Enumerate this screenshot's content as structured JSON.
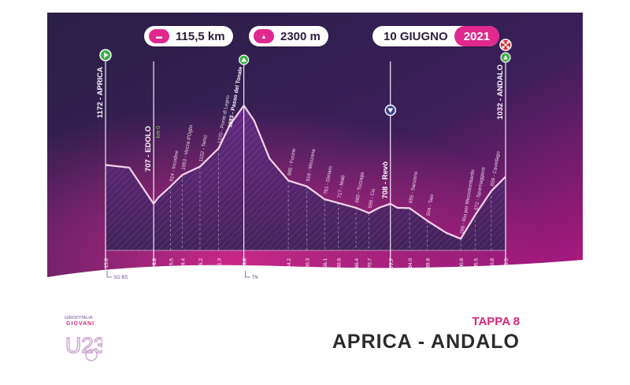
{
  "header": {
    "distance": "115,5 km",
    "distance_icon": "odometer-icon",
    "elevation_gain": "2300 m",
    "elevation_icon": "mountain-icon",
    "date": "10 GIUGNO",
    "year": "2021"
  },
  "footer": {
    "stage_label": "TAPPA 8",
    "stage_title": "APRICA - ANDALO",
    "logo_text_top": "GIROD'ITALIA",
    "logo_text_mid": "GIOVANI",
    "logo_text_main": "U23"
  },
  "colors": {
    "background_dark": "#221a3f",
    "background_accent": "#c01a84",
    "accent": "#e0288f",
    "profile_line": "#f5d5ea",
    "water_sign": "#ffffff"
  },
  "chart_data": {
    "type": "area",
    "title": "",
    "xlabel": "",
    "ylabel": "",
    "x_unit": "km",
    "y_unit": "m",
    "xlim": [
      -15.8,
      115.5
    ],
    "ylim": [
      0,
      1883
    ],
    "profile": [
      {
        "x": -15.8,
        "y": 1172
      },
      {
        "x": -8,
        "y": 1140
      },
      {
        "x": 0.0,
        "y": 707
      },
      {
        "x": 1.5,
        "y": 780
      },
      {
        "x": 5.5,
        "y": 914
      },
      {
        "x": 9.4,
        "y": 1053
      },
      {
        "x": 15.2,
        "y": 1152
      },
      {
        "x": 21.3,
        "y": 1370
      },
      {
        "x": 25,
        "y": 1650
      },
      {
        "x": 29.6,
        "y": 1883
      },
      {
        "x": 33,
        "y": 1700
      },
      {
        "x": 38,
        "y": 1250
      },
      {
        "x": 44.2,
        "y": 985
      },
      {
        "x": 50.3,
        "y": 916
      },
      {
        "x": 56.1,
        "y": 761
      },
      {
        "x": 60.6,
        "y": 717
      },
      {
        "x": 66.4,
        "y": 660
      },
      {
        "x": 70.7,
        "y": 596
      },
      {
        "x": 74,
        "y": 660
      },
      {
        "x": 77.7,
        "y": 708
      },
      {
        "x": 80,
        "y": 660
      },
      {
        "x": 84.0,
        "y": 655
      },
      {
        "x": 89.8,
        "y": 504
      },
      {
        "x": 96,
        "y": 360
      },
      {
        "x": 100.8,
        "y": 288
      },
      {
        "x": 105.5,
        "y": 572
      },
      {
        "x": 110.8,
        "y": 859
      },
      {
        "x": 115.5,
        "y": 1032
      }
    ],
    "start": {
      "x": -15.8,
      "label": "1172 - APRICA",
      "icon": "start-flag-icon"
    },
    "finish": {
      "x": 115.5,
      "label": "1032 - ANDALO",
      "icon": "finish-flag-icon"
    },
    "km0": {
      "x": 0.0,
      "label": "707 - EDOLO",
      "marker": "km 0"
    },
    "gpm": {
      "x": 29.6,
      "label": "1883 - Passo del Tonale",
      "icon": "gpm-mountain-icon"
    },
    "feed": {
      "x": 77.7,
      "label": "708 - Revò",
      "icon": "water-drop-icon"
    },
    "waypoints": [
      {
        "x": 5.5,
        "label": "914 - Incudine"
      },
      {
        "x": 9.4,
        "label": "1053 - Vezza d'Oglio"
      },
      {
        "x": 15.2,
        "label": "1152 - Temù"
      },
      {
        "x": 21.3,
        "label": "1370 - Ponte di Legno"
      },
      {
        "x": 44.2,
        "label": "985 - Fucine"
      },
      {
        "x": 50.3,
        "label": "916 - Mezzana"
      },
      {
        "x": 56.1,
        "label": "761 - Dimaro"
      },
      {
        "x": 60.6,
        "label": "717 - Malè"
      },
      {
        "x": 66.4,
        "label": "660 - Tozzaga"
      },
      {
        "x": 70.7,
        "label": "596 - Cis"
      },
      {
        "x": 84.0,
        "label": "655 - Sanzeno"
      },
      {
        "x": 89.8,
        "label": "504 - Taio"
      },
      {
        "x": 100.8,
        "label": "288 - Rio per Mezzolombardo"
      },
      {
        "x": 105.5,
        "label": "572 - Spormaggiore"
      },
      {
        "x": 110.8,
        "label": "859 - Cavedago"
      }
    ],
    "ticks": [
      {
        "x": -15.8,
        "label": "15.8"
      },
      {
        "x": 0.0,
        "label": "0.0"
      },
      {
        "x": 5.5,
        "label": "5.5"
      },
      {
        "x": 9.4,
        "label": "9.4"
      },
      {
        "x": 15.2,
        "label": "15.2"
      },
      {
        "x": 21.3,
        "label": "21.3"
      },
      {
        "x": 29.6,
        "label": "29.6"
      },
      {
        "x": 44.2,
        "label": "44.2"
      },
      {
        "x": 50.3,
        "label": "50.3"
      },
      {
        "x": 56.1,
        "label": "56.1"
      },
      {
        "x": 60.6,
        "label": "60.6"
      },
      {
        "x": 66.4,
        "label": "66.4"
      },
      {
        "x": 70.7,
        "label": "70.7"
      },
      {
        "x": 77.7,
        "label": "77.7"
      },
      {
        "x": 84.0,
        "label": "84.0"
      },
      {
        "x": 89.8,
        "label": "89.8"
      },
      {
        "x": 100.8,
        "label": "100.8"
      },
      {
        "x": 105.5,
        "label": "105.5"
      },
      {
        "x": 110.8,
        "label": "110.8"
      },
      {
        "x": 115.5,
        "label": "115.5"
      }
    ],
    "road_signs": [
      {
        "x": -15.8,
        "label": "SO BS"
      },
      {
        "x": 29.6,
        "label": "TN"
      }
    ]
  }
}
